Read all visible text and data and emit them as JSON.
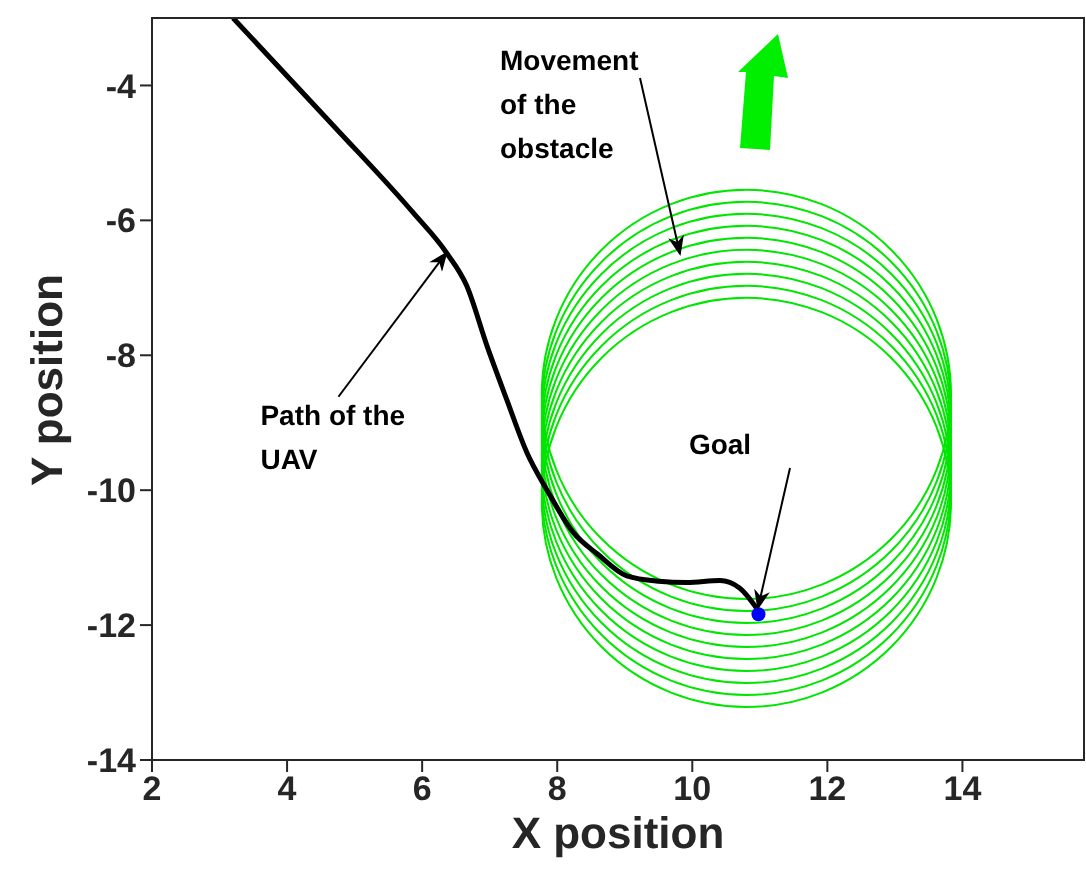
{
  "chart_data": {
    "type": "line",
    "xlabel": "X position",
    "ylabel": "Y position",
    "xlim": [
      2,
      15.8
    ],
    "ylim": [
      -14,
      -3
    ],
    "xticks": [
      2,
      4,
      6,
      8,
      10,
      12,
      14
    ],
    "yticks": [
      -14,
      -12,
      -10,
      -8,
      -6,
      -4
    ],
    "marker": "none",
    "line_style": "solid",
    "annotations": [
      "Movement of the obstacle",
      {
        "text": "Path of the UAV",
        "x": 6.36,
        "y": -6.48
      },
      "Goal"
    ],
    "series": [
      {
        "color": "#000000",
        "x": [
          3.2,
          4.69,
          5.87,
          6.36,
          6.66,
          6.96,
          7.25,
          7.55,
          7.85,
          8.24,
          8.6,
          9.03,
          9.5,
          9.92,
          10.41,
          10.7,
          10.96
        ],
        "values": [
          -3.0,
          -4.6,
          -5.89,
          -6.48,
          -6.97,
          -7.86,
          -8.65,
          -9.44,
          -10.0,
          -10.63,
          -10.95,
          -11.27,
          -11.35,
          -11.37,
          -11.34,
          -11.45,
          -11.76
        ]
      },
      {
        "type": "scatter",
        "marker": "circle",
        "color": "#0000ff",
        "x": [
          10.98
        ],
        "values": [
          -11.84
        ]
      }
    ]
  }
}
